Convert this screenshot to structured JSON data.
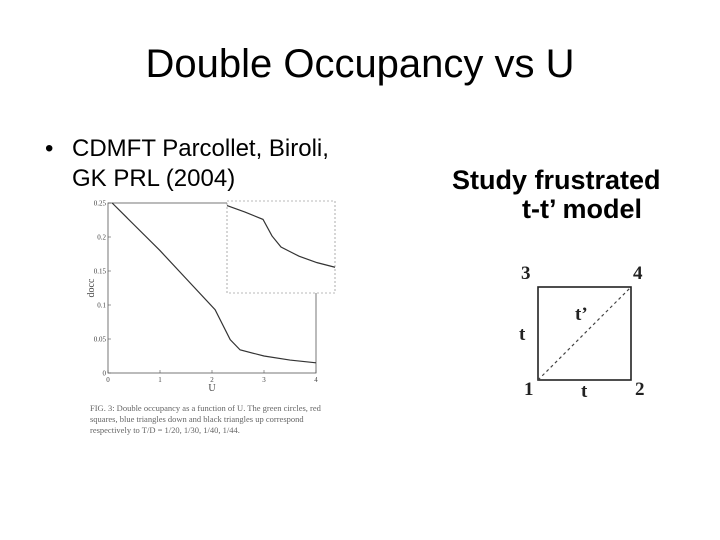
{
  "title": "Double Occupancy vs U",
  "bullets": [
    "CDMFT Parcollet, Biroli, GK PRL (2004)"
  ],
  "side_text": "Study frustrated t-t’ model",
  "chart_data": {
    "type": "line",
    "xlabel": "U",
    "ylabel": "docc",
    "x": [
      0.08,
      0.5,
      1.0,
      1.5,
      2.06,
      2.35,
      2.54,
      3.0,
      3.5,
      4.0
    ],
    "values": [
      0.25,
      0.218,
      0.18,
      0.139,
      0.093,
      0.049,
      0.034,
      0.025,
      0.019,
      0.015
    ],
    "color": "#333333",
    "xlim": [
      0,
      4
    ],
    "ylim": [
      0,
      0.25
    ],
    "xticks": [
      0,
      1,
      2,
      3,
      4
    ],
    "yticks": [
      0,
      0.05,
      0.1,
      0.15,
      0.2,
      0.25
    ],
    "inset": {
      "x": [
        0,
        1,
        2,
        2.5,
        3,
        3.5,
        4,
        5,
        6
      ],
      "values": [
        0.95,
        0.88,
        0.8,
        0.62,
        0.5,
        0.45,
        0.4,
        0.33,
        0.28
      ],
      "xlim": [
        0,
        6
      ],
      "ylim": [
        0,
        1
      ]
    },
    "caption": "FIG. 3: Double occupancy as a function of U. The green circles, red squares, blue triangles down and black triangles up correspond respectively to T/D = 1/20, 1/30, 1/40, 1/44."
  },
  "diagram": {
    "nodes": [
      {
        "label": "3"
      },
      {
        "label": "4"
      },
      {
        "label": "1"
      },
      {
        "label": "2"
      }
    ],
    "edges": [
      {
        "label": "t"
      },
      {
        "label": "t’"
      },
      {
        "label": "t"
      }
    ]
  }
}
